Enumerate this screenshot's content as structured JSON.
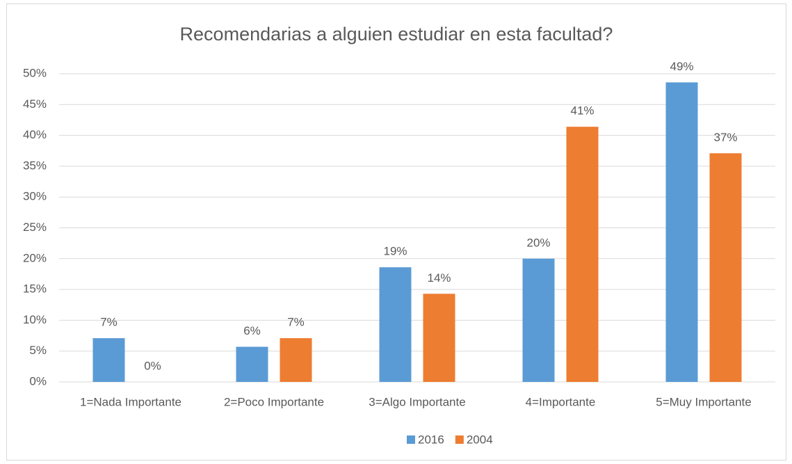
{
  "chart_data": {
    "type": "bar",
    "title": "Recomendarias a alguien  estudiar en esta facultad?",
    "categories": [
      "1=Nada Importante",
      "2=Poco Importante",
      "3=Algo Importante",
      "4=Importante",
      "5=Muy Importante"
    ],
    "series": [
      {
        "name": "2016",
        "color": "#5b9bd5",
        "values": [
          7.1,
          5.7,
          18.6,
          20,
          48.6
        ],
        "value_labels": [
          "7%",
          "6%",
          "19%",
          "20%",
          "49%"
        ]
      },
      {
        "name": "2004",
        "color": "#ed7d31",
        "values": [
          0,
          7.1,
          14.3,
          41.4,
          37.1
        ],
        "value_labels": [
          "0%",
          "7%",
          "14%",
          "41%",
          "37%"
        ]
      }
    ],
    "ylim": [
      0,
      50
    ],
    "yticks": [
      {
        "value": 0,
        "label": "0%"
      },
      {
        "value": 5,
        "label": "5%"
      },
      {
        "value": 10,
        "label": "10%"
      },
      {
        "value": 15,
        "label": "15%"
      },
      {
        "value": 20,
        "label": "20%"
      },
      {
        "value": 25,
        "label": "25%"
      },
      {
        "value": 30,
        "label": "30%"
      },
      {
        "value": 35,
        "label": "35%"
      },
      {
        "value": 40,
        "label": "40%"
      },
      {
        "value": 45,
        "label": "45%"
      },
      {
        "value": 50,
        "label": "50%"
      }
    ],
    "grid": true,
    "legend": "bottom"
  }
}
